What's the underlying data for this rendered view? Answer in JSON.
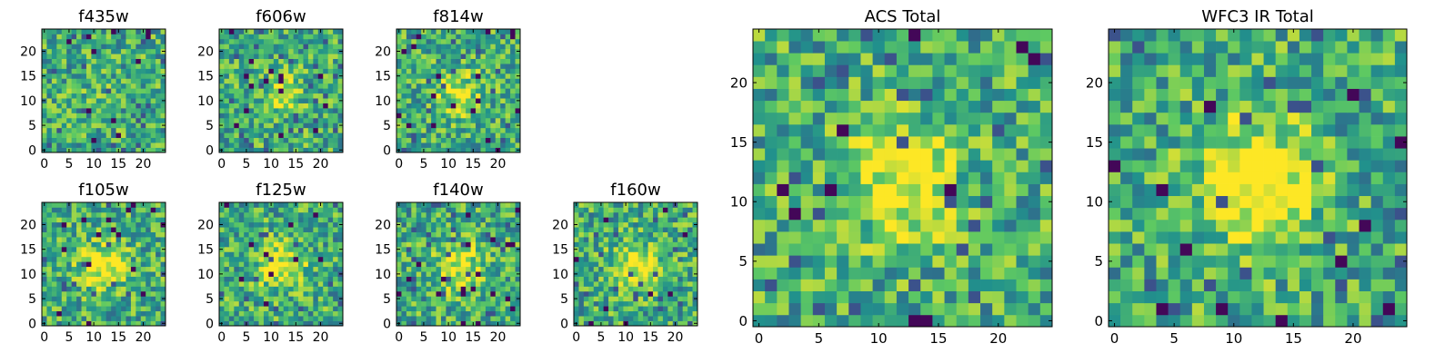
{
  "chart_data": [
    {
      "type": "heatmap",
      "id": "f435w",
      "title": "f435w",
      "seed": 11,
      "peak": 0.05,
      "x_ticks": [
        0,
        5,
        10,
        15,
        20
      ],
      "y_ticks": [
        0,
        5,
        10,
        15,
        20
      ],
      "x_tick_labels": [
        "0",
        "5",
        "10",
        "15",
        "20"
      ],
      "y_tick_labels": [
        "0",
        "5",
        "10",
        "15",
        "20"
      ],
      "xlim": [
        -0.5,
        24.5
      ],
      "ylim": [
        -0.5,
        24.5
      ],
      "grid": [
        25,
        25
      ],
      "colormap": [
        "#440154",
        "#3b528b",
        "#21918c",
        "#5ec962",
        "#fde725"
      ]
    },
    {
      "type": "heatmap",
      "id": "f606w",
      "title": "f606w",
      "seed": 23,
      "peak": 0.22,
      "x_ticks": [
        0,
        5,
        10,
        15,
        20
      ],
      "y_ticks": [
        0,
        5,
        10,
        15,
        20
      ],
      "x_tick_labels": [
        "0",
        "5",
        "10",
        "15",
        "20"
      ],
      "y_tick_labels": [
        "0",
        "5",
        "10",
        "15",
        "20"
      ],
      "xlim": [
        -0.5,
        24.5
      ],
      "ylim": [
        -0.5,
        24.5
      ],
      "grid": [
        25,
        25
      ],
      "colormap": [
        "#440154",
        "#3b528b",
        "#21918c",
        "#5ec962",
        "#fde725"
      ]
    },
    {
      "type": "heatmap",
      "id": "f814w",
      "title": "f814w",
      "seed": 37,
      "peak": 0.3,
      "x_ticks": [
        0,
        5,
        10,
        15,
        20
      ],
      "y_ticks": [
        0,
        5,
        10,
        15,
        20
      ],
      "x_tick_labels": [
        "0",
        "5",
        "10",
        "15",
        "20"
      ],
      "y_tick_labels": [
        "0",
        "5",
        "10",
        "15",
        "20"
      ],
      "xlim": [
        -0.5,
        24.5
      ],
      "ylim": [
        -0.5,
        24.5
      ],
      "grid": [
        25,
        25
      ],
      "colormap": [
        "#440154",
        "#3b528b",
        "#21918c",
        "#5ec962",
        "#fde725"
      ]
    },
    {
      "type": "heatmap",
      "id": "f105w",
      "title": "f105w",
      "seed": 41,
      "peak": 0.45,
      "x_ticks": [
        0,
        5,
        10,
        15,
        20
      ],
      "y_ticks": [
        0,
        5,
        10,
        15,
        20
      ],
      "x_tick_labels": [
        "0",
        "5",
        "10",
        "15",
        "20"
      ],
      "y_tick_labels": [
        "0",
        "5",
        "10",
        "15",
        "20"
      ],
      "xlim": [
        -0.5,
        24.5
      ],
      "ylim": [
        -0.5,
        24.5
      ],
      "grid": [
        25,
        25
      ],
      "colormap": [
        "#440154",
        "#3b528b",
        "#21918c",
        "#5ec962",
        "#fde725"
      ]
    },
    {
      "type": "heatmap",
      "id": "f125w",
      "title": "f125w",
      "seed": 53,
      "peak": 0.4,
      "x_ticks": [
        0,
        5,
        10,
        15,
        20
      ],
      "y_ticks": [
        0,
        5,
        10,
        15,
        20
      ],
      "x_tick_labels": [
        "0",
        "5",
        "10",
        "15",
        "20"
      ],
      "y_tick_labels": [
        "0",
        "5",
        "10",
        "15",
        "20"
      ],
      "xlim": [
        -0.5,
        24.5
      ],
      "ylim": [
        -0.5,
        24.5
      ],
      "grid": [
        25,
        25
      ],
      "colormap": [
        "#440154",
        "#3b528b",
        "#21918c",
        "#5ec962",
        "#fde725"
      ]
    },
    {
      "type": "heatmap",
      "id": "f140w",
      "title": "f140w",
      "seed": 67,
      "peak": 0.38,
      "x_ticks": [
        0,
        5,
        10,
        15,
        20
      ],
      "y_ticks": [
        0,
        5,
        10,
        15,
        20
      ],
      "x_tick_labels": [
        "0",
        "5",
        "10",
        "15",
        "20"
      ],
      "y_tick_labels": [
        "0",
        "5",
        "10",
        "15",
        "20"
      ],
      "xlim": [
        -0.5,
        24.5
      ],
      "ylim": [
        -0.5,
        24.5
      ],
      "grid": [
        25,
        25
      ],
      "colormap": [
        "#440154",
        "#3b528b",
        "#21918c",
        "#5ec962",
        "#fde725"
      ]
    },
    {
      "type": "heatmap",
      "id": "f160w",
      "title": "f160w",
      "seed": 79,
      "peak": 0.4,
      "x_ticks": [
        0,
        5,
        10,
        15,
        20
      ],
      "y_ticks": [
        0,
        5,
        10,
        15,
        20
      ],
      "x_tick_labels": [
        "0",
        "5",
        "10",
        "15",
        "20"
      ],
      "y_tick_labels": [
        "0",
        "5",
        "10",
        "15",
        "20"
      ],
      "xlim": [
        -0.5,
        24.5
      ],
      "ylim": [
        -0.5,
        24.5
      ],
      "grid": [
        25,
        25
      ],
      "colormap": [
        "#440154",
        "#3b528b",
        "#21918c",
        "#5ec962",
        "#fde725"
      ]
    },
    {
      "type": "heatmap",
      "id": "acs_total",
      "title": "ACS Total",
      "seed": 97,
      "peak": 0.45,
      "x_ticks": [
        0,
        5,
        10,
        15,
        20
      ],
      "y_ticks": [
        0,
        5,
        10,
        15,
        20
      ],
      "x_tick_labels": [
        "0",
        "5",
        "10",
        "15",
        "20"
      ],
      "y_tick_labels": [
        "0",
        "5",
        "10",
        "15",
        "20"
      ],
      "xlim": [
        -0.5,
        24.5
      ],
      "ylim": [
        -0.5,
        24.5
      ],
      "grid": [
        25,
        25
      ],
      "colormap": [
        "#440154",
        "#3b528b",
        "#21918c",
        "#5ec962",
        "#fde725"
      ]
    },
    {
      "type": "heatmap",
      "id": "wfc3_ir_total",
      "title": "WFC3 IR Total",
      "seed": 131,
      "peak": 0.6,
      "x_ticks": [
        0,
        5,
        10,
        15,
        20
      ],
      "y_ticks": [
        0,
        5,
        10,
        15,
        20
      ],
      "x_tick_labels": [
        "0",
        "5",
        "10",
        "15",
        "20"
      ],
      "y_tick_labels": [
        "0",
        "5",
        "10",
        "15",
        "20"
      ],
      "xlim": [
        -0.5,
        24.5
      ],
      "ylim": [
        -0.5,
        24.5
      ],
      "grid": [
        25,
        25
      ],
      "colormap": [
        "#440154",
        "#3b528b",
        "#21918c",
        "#5ec962",
        "#fde725"
      ]
    }
  ]
}
